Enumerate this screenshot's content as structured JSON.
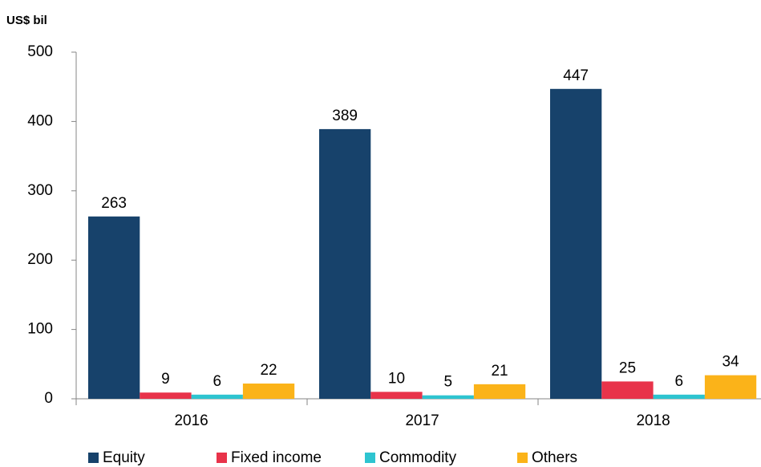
{
  "chart_data": {
    "type": "bar",
    "y_label": "US$ bil",
    "categories": [
      "2016",
      "2017",
      "2018"
    ],
    "series": [
      {
        "name": "Equity",
        "color": "#17426b",
        "values": [
          263,
          389,
          447
        ]
      },
      {
        "name": "Fixed income",
        "color": "#e8334a",
        "values": [
          9,
          10,
          25
        ]
      },
      {
        "name": "Commodity",
        "color": "#2ec4d0",
        "values": [
          6,
          5,
          6
        ]
      },
      {
        "name": "Others",
        "color": "#fbb319",
        "values": [
          22,
          21,
          34
        ]
      }
    ],
    "ylim": [
      0,
      500
    ],
    "yticks": [
      0,
      100,
      200,
      300,
      400,
      500
    ],
    "grid": false,
    "legend": "bottom"
  }
}
